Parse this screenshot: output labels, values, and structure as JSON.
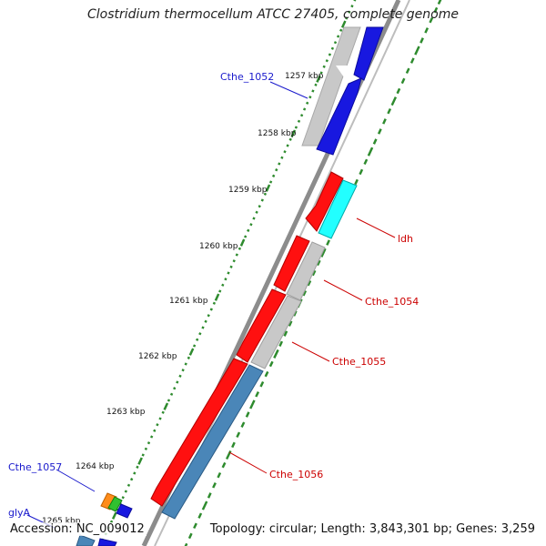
{
  "title": "Clostridium thermocellum ATCC 27405, complete genome",
  "footer": {
    "accession": "Accession: NC_009012",
    "summary": "Topology: circular; Length: 3,843,301 bp; Genes: 3,259"
  },
  "colors": {
    "backbone": "#8c8c8c",
    "forward_tick": "#2e8b2e",
    "gene_label_blue": "#1a1acc",
    "gene_label_red": "#cc0000",
    "gene_red": "#ff1010",
    "gene_blue": "#1818e0",
    "gene_gray": "#c8c8c8",
    "gene_cyan": "#22ffff",
    "gene_steel": "#4a86b8"
  },
  "scale_labels": [
    "1257 kbp",
    "1258 kbp",
    "1259 kbp",
    "1260 kbp",
    "1261 kbp",
    "1262 kbp",
    "1263 kbp",
    "1264 kbp",
    "1265 kbp"
  ],
  "gene_labels": {
    "cthe_1052": "Cthe_1052",
    "ldh": "ldh",
    "cthe_1054": "Cthe_1054",
    "cthe_1055": "Cthe_1055",
    "cthe_1056": "Cthe_1056",
    "cthe_1057": "Cthe_1057",
    "glya": "glyA"
  }
}
